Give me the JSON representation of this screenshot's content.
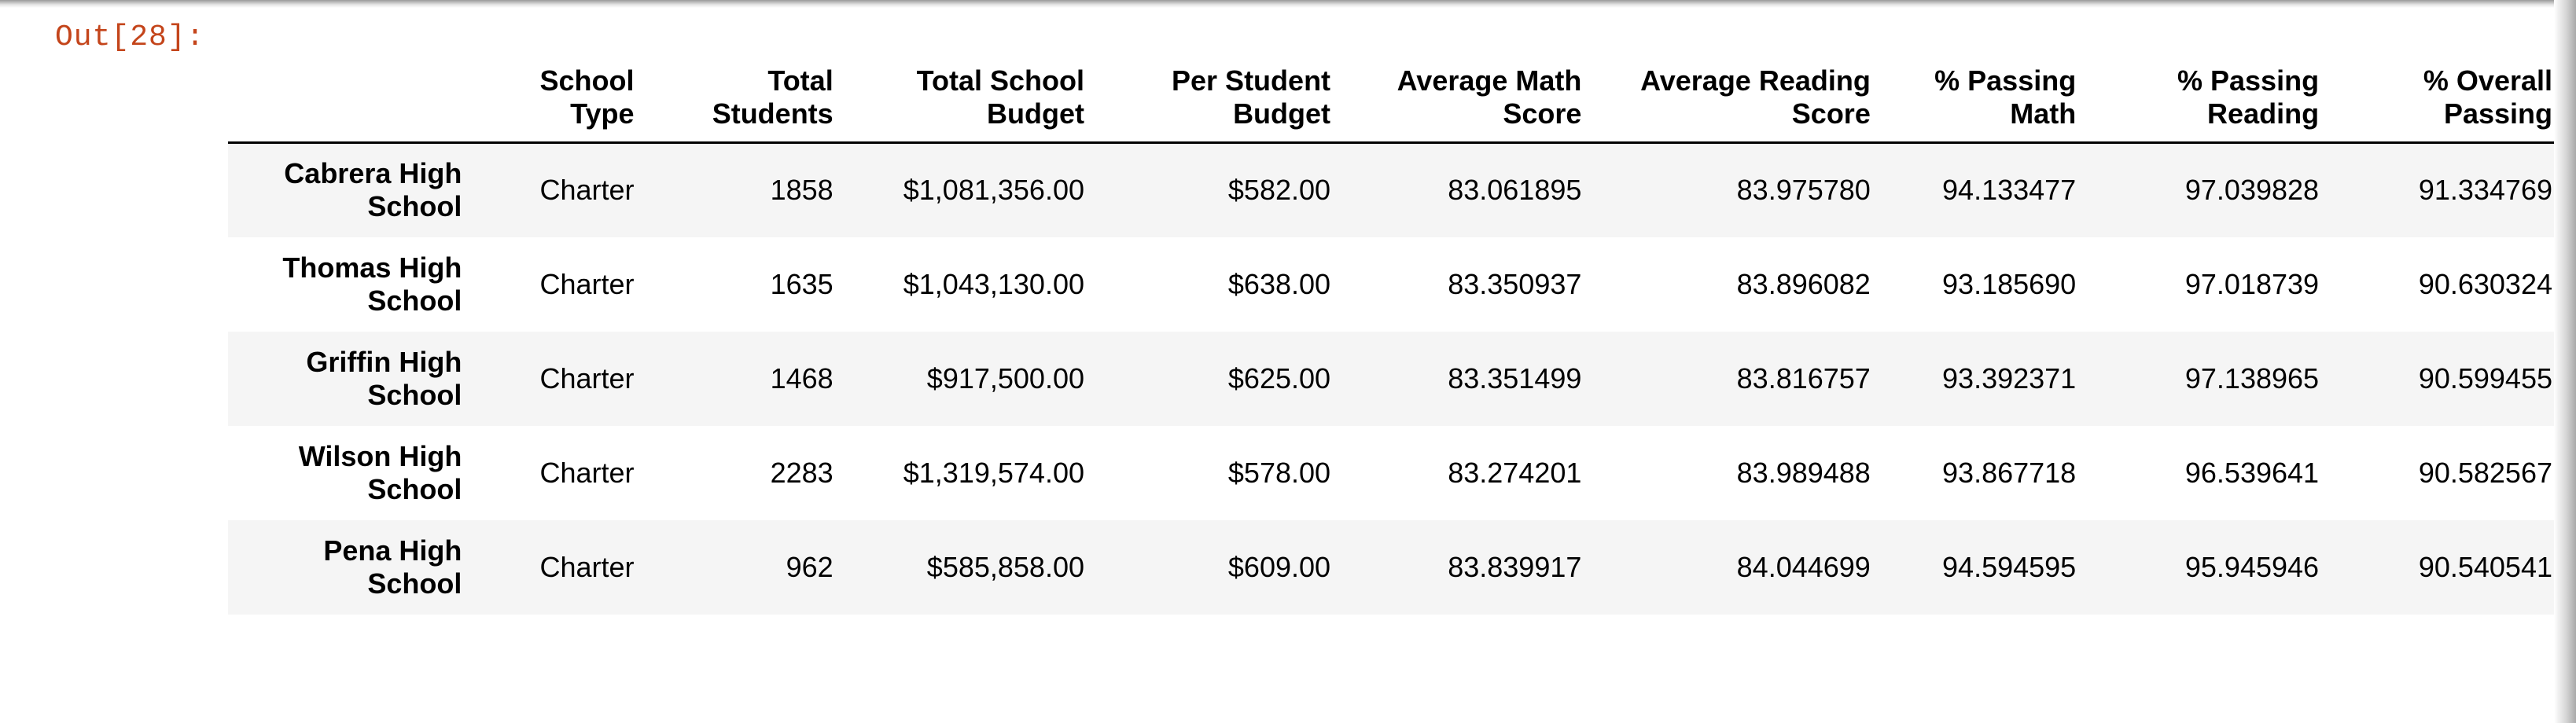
{
  "cell": {
    "prompt": "Out[28]:"
  },
  "table": {
    "columns": [
      {
        "line1": "",
        "line2": ""
      },
      {
        "line1": "School",
        "line2": "Type"
      },
      {
        "line1": "Total",
        "line2": "Students"
      },
      {
        "line1": "Total School",
        "line2": "Budget"
      },
      {
        "line1": "Per Student",
        "line2": "Budget"
      },
      {
        "line1": "Average Math",
        "line2": "Score"
      },
      {
        "line1": "Average Reading",
        "line2": "Score"
      },
      {
        "line1": "% Passing",
        "line2": "Math"
      },
      {
        "line1": "% Passing",
        "line2": "Reading"
      },
      {
        "line1": "% Overall",
        "line2": "Passing"
      }
    ],
    "rows": [
      {
        "name1": "Cabrera High",
        "name2": "School",
        "type": "Charter",
        "students": "1858",
        "total_budget": "$1,081,356.00",
        "per_student": "$582.00",
        "math": "83.061895",
        "reading": "83.975780",
        "pass_math": "94.133477",
        "pass_reading": "97.039828",
        "overall": "91.334769"
      },
      {
        "name1": "Thomas High",
        "name2": "School",
        "type": "Charter",
        "students": "1635",
        "total_budget": "$1,043,130.00",
        "per_student": "$638.00",
        "math": "83.350937",
        "reading": "83.896082",
        "pass_math": "93.185690",
        "pass_reading": "97.018739",
        "overall": "90.630324"
      },
      {
        "name1": "Griffin High",
        "name2": "School",
        "type": "Charter",
        "students": "1468",
        "total_budget": "$917,500.00",
        "per_student": "$625.00",
        "math": "83.351499",
        "reading": "83.816757",
        "pass_math": "93.392371",
        "pass_reading": "97.138965",
        "overall": "90.599455"
      },
      {
        "name1": "Wilson High",
        "name2": "School",
        "type": "Charter",
        "students": "2283",
        "total_budget": "$1,319,574.00",
        "per_student": "$578.00",
        "math": "83.274201",
        "reading": "83.989488",
        "pass_math": "93.867718",
        "pass_reading": "96.539641",
        "overall": "90.582567"
      },
      {
        "name1": "Pena High",
        "name2": "School",
        "type": "Charter",
        "students": "962",
        "total_budget": "$585,858.00",
        "per_student": "$609.00",
        "math": "83.839917",
        "reading": "84.044699",
        "pass_math": "94.594595",
        "pass_reading": "95.945946",
        "overall": "90.540541"
      }
    ]
  }
}
